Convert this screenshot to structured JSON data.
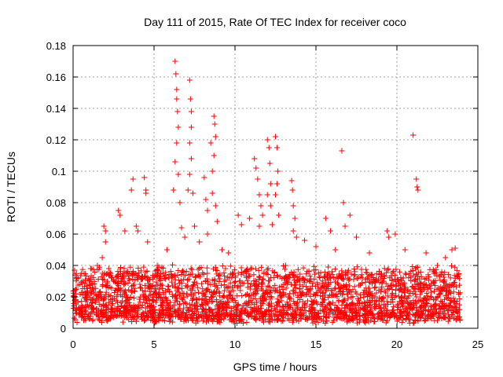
{
  "chart_data": {
    "type": "scatter",
    "title": "Day 111 of 2015, Rate Of TEC Index for receiver coco",
    "xlabel": "GPS time / hours",
    "ylabel": "ROTI / TECUs",
    "xlim": [
      0,
      25
    ],
    "ylim": [
      0,
      0.18
    ],
    "xticks": [
      0,
      5,
      10,
      15,
      20,
      25
    ],
    "xtick_labels": [
      "0",
      "5",
      "10",
      "15",
      "20",
      "25"
    ],
    "yticks": [
      0,
      0.02,
      0.04,
      0.06,
      0.08,
      0.1,
      0.12,
      0.14,
      0.16,
      0.18
    ],
    "ytick_labels": [
      "0",
      "0.02",
      "0.04",
      "0.06",
      "0.08",
      "0.1",
      "0.12",
      "0.14",
      "0.16",
      "0.18"
    ],
    "grid": true,
    "marker": "+",
    "series": [
      {
        "name": "ROTI",
        "color": "#ff0000",
        "points": [
          [
            0.1,
            0.018
          ],
          [
            0.2,
            0.025
          ],
          [
            0.3,
            0.032
          ],
          [
            0.4,
            0.012
          ],
          [
            0.5,
            0.035
          ],
          [
            0.8,
            0.022
          ],
          [
            1.0,
            0.03
          ],
          [
            1.2,
            0.028
          ],
          [
            1.5,
            0.04
          ],
          [
            1.8,
            0.045
          ],
          [
            1.9,
            0.065
          ],
          [
            2.0,
            0.062
          ],
          [
            2.0,
            0.055
          ],
          [
            2.2,
            0.038
          ],
          [
            2.5,
            0.03
          ],
          [
            2.8,
            0.075
          ],
          [
            2.9,
            0.072
          ],
          [
            3.2,
            0.062
          ],
          [
            3.6,
            0.088
          ],
          [
            3.7,
            0.095
          ],
          [
            3.9,
            0.065
          ],
          [
            4.0,
            0.062
          ],
          [
            4.4,
            0.096
          ],
          [
            4.5,
            0.088
          ],
          [
            4.5,
            0.086
          ],
          [
            4.6,
            0.055
          ],
          [
            5.2,
            0.04
          ],
          [
            5.8,
            0.05
          ],
          [
            6.2,
            0.088
          ],
          [
            6.3,
            0.17
          ],
          [
            6.35,
            0.162
          ],
          [
            6.4,
            0.152
          ],
          [
            6.4,
            0.146
          ],
          [
            6.45,
            0.138
          ],
          [
            6.5,
            0.128
          ],
          [
            6.4,
            0.118
          ],
          [
            6.3,
            0.106
          ],
          [
            6.5,
            0.098
          ],
          [
            6.6,
            0.08
          ],
          [
            6.7,
            0.064
          ],
          [
            6.9,
            0.058
          ],
          [
            7.1,
            0.088
          ],
          [
            7.2,
            0.158
          ],
          [
            7.25,
            0.146
          ],
          [
            7.3,
            0.138
          ],
          [
            7.3,
            0.128
          ],
          [
            7.2,
            0.118
          ],
          [
            7.3,
            0.108
          ],
          [
            7.2,
            0.098
          ],
          [
            7.4,
            0.086
          ],
          [
            7.5,
            0.065
          ],
          [
            7.8,
            0.055
          ],
          [
            8.1,
            0.096
          ],
          [
            8.2,
            0.082
          ],
          [
            8.3,
            0.075
          ],
          [
            8.3,
            0.06
          ],
          [
            8.5,
            0.118
          ],
          [
            8.7,
            0.135
          ],
          [
            8.75,
            0.13
          ],
          [
            8.8,
            0.122
          ],
          [
            8.7,
            0.11
          ],
          [
            8.6,
            0.1
          ],
          [
            8.6,
            0.086
          ],
          [
            8.8,
            0.078
          ],
          [
            8.9,
            0.068
          ],
          [
            9.2,
            0.05
          ],
          [
            9.6,
            0.048
          ],
          [
            10.2,
            0.072
          ],
          [
            10.4,
            0.066
          ],
          [
            10.9,
            0.07
          ],
          [
            11.2,
            0.108
          ],
          [
            11.3,
            0.102
          ],
          [
            11.4,
            0.095
          ],
          [
            11.5,
            0.085
          ],
          [
            11.6,
            0.078
          ],
          [
            11.7,
            0.072
          ],
          [
            11.5,
            0.065
          ],
          [
            12.0,
            0.12
          ],
          [
            12.1,
            0.115
          ],
          [
            12.15,
            0.105
          ],
          [
            12.2,
            0.092
          ],
          [
            12.0,
            0.085
          ],
          [
            12.2,
            0.078
          ],
          [
            12.3,
            0.066
          ],
          [
            12.5,
            0.122
          ],
          [
            12.6,
            0.115
          ],
          [
            12.65,
            0.1
          ],
          [
            12.6,
            0.092
          ],
          [
            12.5,
            0.085
          ],
          [
            12.7,
            0.072
          ],
          [
            13.5,
            0.094
          ],
          [
            13.55,
            0.088
          ],
          [
            13.6,
            0.078
          ],
          [
            13.7,
            0.07
          ],
          [
            13.6,
            0.062
          ],
          [
            13.8,
            0.058
          ],
          [
            14.3,
            0.056
          ],
          [
            15.0,
            0.052
          ],
          [
            15.6,
            0.07
          ],
          [
            15.9,
            0.062
          ],
          [
            16.2,
            0.05
          ],
          [
            16.6,
            0.113
          ],
          [
            16.7,
            0.08
          ],
          [
            16.8,
            0.065
          ],
          [
            17.1,
            0.072
          ],
          [
            17.5,
            0.058
          ],
          [
            18.3,
            0.048
          ],
          [
            19.4,
            0.062
          ],
          [
            19.5,
            0.058
          ],
          [
            19.9,
            0.06
          ],
          [
            20.5,
            0.05
          ],
          [
            21.0,
            0.123
          ],
          [
            21.2,
            0.095
          ],
          [
            21.25,
            0.09
          ],
          [
            21.3,
            0.088
          ],
          [
            21.8,
            0.048
          ],
          [
            22.5,
            0.04
          ],
          [
            23.0,
            0.045
          ],
          [
            23.4,
            0.05
          ],
          [
            23.6,
            0.051
          ]
        ]
      }
    ],
    "background_band": {
      "description": "dense continuous scatter of small ROTI values across the whole day",
      "x_range": [
        0,
        23.9
      ],
      "typical_min": 0.003,
      "typical_max": 0.035
    }
  }
}
